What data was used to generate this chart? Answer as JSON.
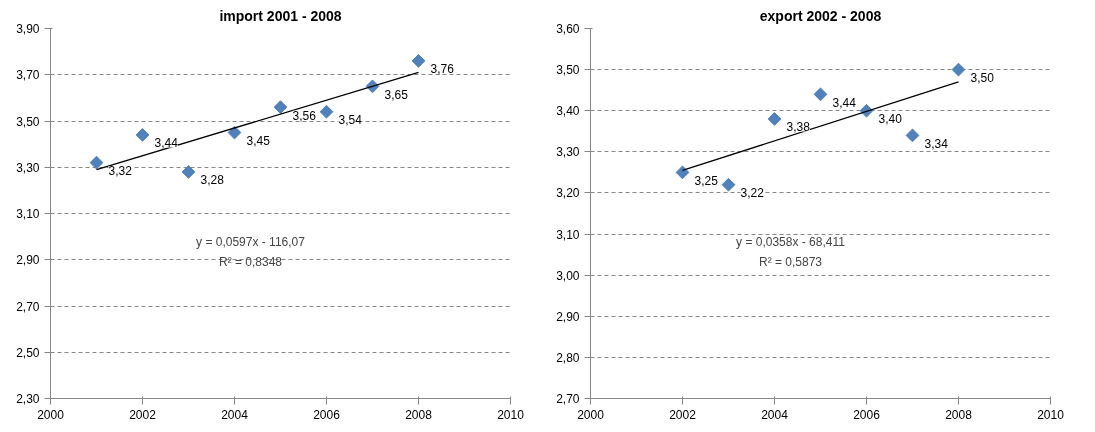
{
  "chart_data": [
    {
      "type": "scatter",
      "title": "import 2001 - 2008",
      "x": [
        2001,
        2002,
        2003,
        2004,
        2005,
        2006,
        2007,
        2008
      ],
      "xlim": [
        2000,
        2010
      ],
      "xticks": [
        2000,
        2002,
        2004,
        2006,
        2008,
        2010
      ],
      "ylim": [
        2.3,
        3.9
      ],
      "yticks": [
        {
          "value": 2.3,
          "label": "2,30"
        },
        {
          "value": 2.5,
          "label": "2,50"
        },
        {
          "value": 2.7,
          "label": "2,70"
        },
        {
          "value": 2.9,
          "label": "2,90"
        },
        {
          "value": 3.1,
          "label": "3,10"
        },
        {
          "value": 3.3,
          "label": "3,30"
        },
        {
          "value": 3.5,
          "label": "3,50"
        },
        {
          "value": 3.7,
          "label": "3,70"
        },
        {
          "value": 3.9,
          "label": "3,90"
        }
      ],
      "grid": "y",
      "series": [
        {
          "marker": "diamond",
          "color": "#4f81bd",
          "values": [
            3.32,
            3.44,
            3.28,
            3.45,
            3.56,
            3.54,
            3.65,
            3.76
          ],
          "value_labels": [
            "3,32",
            "3,44",
            "3,28",
            "3,45",
            "3,56",
            "3,54",
            "3,65",
            "3,76"
          ]
        },
        {
          "type": "line",
          "color": "#000000",
          "x": [
            2001,
            2008
          ],
          "values": [
            3.29,
            3.71
          ]
        }
      ],
      "annotations": [
        "y = 0,0597x - 116,07",
        "R² = 0,8348"
      ]
    },
    {
      "type": "scatter",
      "title": "export 2002 - 2008",
      "x": [
        2002,
        2003,
        2004,
        2005,
        2006,
        2007,
        2008
      ],
      "xlim": [
        2000,
        2010
      ],
      "xticks": [
        2000,
        2002,
        2004,
        2006,
        2008,
        2010
      ],
      "ylim": [
        2.7,
        3.6
      ],
      "yticks": [
        {
          "value": 2.7,
          "label": "2,70"
        },
        {
          "value": 2.8,
          "label": "2,80"
        },
        {
          "value": 2.9,
          "label": "2,90"
        },
        {
          "value": 3.0,
          "label": "3,00"
        },
        {
          "value": 3.1,
          "label": "3,10"
        },
        {
          "value": 3.2,
          "label": "3,20"
        },
        {
          "value": 3.3,
          "label": "3,30"
        },
        {
          "value": 3.4,
          "label": "3,40"
        },
        {
          "value": 3.5,
          "label": "3,50"
        },
        {
          "value": 3.6,
          "label": "3,60"
        }
      ],
      "grid": "y",
      "series": [
        {
          "marker": "diamond",
          "color": "#4f81bd",
          "values": [
            3.25,
            3.22,
            3.38,
            3.44,
            3.4,
            3.34,
            3.5
          ],
          "value_labels": [
            "3,25",
            "3,22",
            "3,38",
            "3,44",
            "3,40",
            "3,34",
            "3,50"
          ]
        },
        {
          "type": "line",
          "color": "#000000",
          "x": [
            2002,
            2008
          ],
          "values": [
            3.255,
            3.47
          ]
        }
      ],
      "annotations": [
        "y = 0,0358x - 68,411",
        "R² = 0,5873"
      ]
    }
  ]
}
